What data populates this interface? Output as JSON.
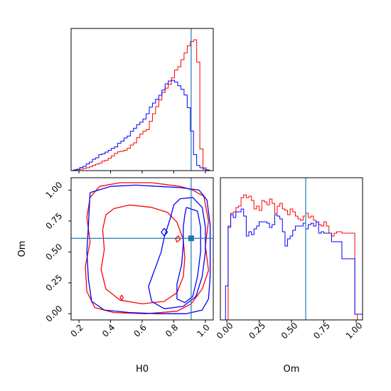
{
  "chart_data": [
    {
      "type": "histogram",
      "panel": "H0 marginal",
      "xlim": [
        0.15,
        1.05
      ],
      "truth": 0.91,
      "bins_x": [
        0.155,
        0.175,
        0.195,
        0.215,
        0.235,
        0.255,
        0.275,
        0.295,
        0.315,
        0.335,
        0.355,
        0.375,
        0.395,
        0.415,
        0.435,
        0.455,
        0.475,
        0.495,
        0.515,
        0.535,
        0.555,
        0.575,
        0.595,
        0.615,
        0.635,
        0.655,
        0.675,
        0.695,
        0.715,
        0.735,
        0.755,
        0.775,
        0.795,
        0.815,
        0.835,
        0.855,
        0.875,
        0.895,
        0.915,
        0.935,
        0.955,
        0.975,
        0.995,
        1.015,
        1.035
      ],
      "series": [
        {
          "color": "#ff0000",
          "values": [
            0,
            0.003,
            0.004,
            0.006,
            0.009,
            0.012,
            0.016,
            0.022,
            0.027,
            0.031,
            0.04,
            0.044,
            0.052,
            0.062,
            0.073,
            0.08,
            0.082,
            0.086,
            0.094,
            0.108,
            0.117,
            0.139,
            0.154,
            0.166,
            0.173,
            0.208,
            0.24,
            0.27,
            0.298,
            0.33,
            0.348,
            0.364,
            0.392,
            0.424,
            0.438,
            0.468,
            0.497,
            0.527,
            0.545,
            0.552,
            0.458,
            0.091,
            0.012,
            0,
            0
          ]
        },
        {
          "color": "#0000ff",
          "values": [
            0,
            0.003,
            0.006,
            0.013,
            0.018,
            0.028,
            0.036,
            0.048,
            0.054,
            0.067,
            0.071,
            0.078,
            0.086,
            0.094,
            0.1,
            0.115,
            0.124,
            0.138,
            0.146,
            0.166,
            0.179,
            0.194,
            0.204,
            0.218,
            0.24,
            0.268,
            0.285,
            0.301,
            0.318,
            0.34,
            0.366,
            0.378,
            0.381,
            0.374,
            0.358,
            0.343,
            0.319,
            0.266,
            0.167,
            0.068,
            0.022,
            0.012,
            0.006,
            0.003,
            0
          ]
        }
      ]
    },
    {
      "type": "contour",
      "panel": "H0 vs Om",
      "xlabel": "H0",
      "ylabel": "Om",
      "xlim": [
        0.15,
        1.05
      ],
      "ylim": [
        -0.05,
        1.1
      ],
      "truth": [
        0.91,
        0.61
      ],
      "x_ticks": [
        "0.2",
        "0.4",
        "0.6",
        "0.8",
        "1.0"
      ],
      "y_ticks": [
        "0.00",
        "0.25",
        "0.50",
        "0.75",
        "1.00"
      ],
      "series": [
        {
          "color": "#ff0000",
          "contours": [
            [
              [
                0.33,
                1.03
              ],
              [
                0.46,
                1.06
              ],
              [
                0.66,
                1.06
              ],
              [
                0.84,
                1.03
              ],
              [
                0.92,
                1.0
              ],
              [
                0.99,
                0.95
              ],
              [
                1.02,
                0.75
              ],
              [
                1.0,
                0.55
              ],
              [
                1.02,
                0.35
              ],
              [
                0.98,
                0.2
              ],
              [
                0.91,
                0.08
              ],
              [
                0.82,
                0.02
              ],
              [
                0.62,
                0.0
              ],
              [
                0.42,
                0.01
              ],
              [
                0.3,
                0.05
              ],
              [
                0.25,
                0.18
              ],
              [
                0.24,
                0.38
              ],
              [
                0.27,
                0.58
              ],
              [
                0.25,
                0.78
              ],
              [
                0.27,
                0.94
              ],
              [
                0.33,
                1.03
              ]
            ],
            [
              [
                0.42,
                0.85
              ],
              [
                0.52,
                0.88
              ],
              [
                0.66,
                0.86
              ],
              [
                0.76,
                0.82
              ],
              [
                0.82,
                0.74
              ],
              [
                0.86,
                0.6
              ],
              [
                0.87,
                0.45
              ],
              [
                0.86,
                0.3
              ],
              [
                0.82,
                0.17
              ],
              [
                0.74,
                0.1
              ],
              [
                0.6,
                0.08
              ],
              [
                0.46,
                0.11
              ],
              [
                0.37,
                0.2
              ],
              [
                0.34,
                0.36
              ],
              [
                0.36,
                0.52
              ],
              [
                0.35,
                0.68
              ],
              [
                0.37,
                0.8
              ],
              [
                0.42,
                0.85
              ]
            ],
            [
              [
                0.46,
                0.13
              ],
              [
                0.47,
                0.15
              ],
              [
                0.48,
                0.13
              ],
              [
                0.47,
                0.11
              ],
              [
                0.46,
                0.13
              ]
            ],
            [
              [
                0.81,
                0.61
              ],
              [
                0.83,
                0.63
              ],
              [
                0.84,
                0.6
              ],
              [
                0.82,
                0.58
              ],
              [
                0.81,
                0.61
              ]
            ]
          ]
        },
        {
          "color": "#0000ff",
          "contours": [
            [
              [
                0.27,
                0.98
              ],
              [
                0.4,
                1.03
              ],
              [
                0.56,
                1.04
              ],
              [
                0.7,
                1.03
              ],
              [
                0.84,
                1.02
              ],
              [
                0.96,
                1.0
              ],
              [
                1.01,
                0.92
              ],
              [
                1.03,
                0.72
              ],
              [
                1.03,
                0.5
              ],
              [
                1.03,
                0.3
              ],
              [
                1.02,
                0.12
              ],
              [
                0.98,
                0.03
              ],
              [
                0.88,
                0.0
              ],
              [
                0.7,
                0.0
              ],
              [
                0.52,
                0.01
              ],
              [
                0.36,
                0.03
              ],
              [
                0.28,
                0.1
              ],
              [
                0.26,
                0.28
              ],
              [
                0.25,
                0.5
              ],
              [
                0.26,
                0.72
              ],
              [
                0.27,
                0.98
              ]
            ],
            [
              [
                0.84,
                0.93
              ],
              [
                0.92,
                0.94
              ],
              [
                0.98,
                0.86
              ],
              [
                1.0,
                0.7
              ],
              [
                1.0,
                0.5
              ],
              [
                0.98,
                0.3
              ],
              [
                0.94,
                0.14
              ],
              [
                0.86,
                0.06
              ],
              [
                0.74,
                0.04
              ],
              [
                0.66,
                0.1
              ],
              [
                0.64,
                0.22
              ],
              [
                0.68,
                0.36
              ],
              [
                0.72,
                0.5
              ],
              [
                0.74,
                0.62
              ],
              [
                0.78,
                0.78
              ],
              [
                0.8,
                0.88
              ],
              [
                0.84,
                0.93
              ]
            ],
            [
              [
                0.88,
                0.86
              ],
              [
                0.95,
                0.83
              ],
              [
                0.97,
                0.7
              ],
              [
                0.97,
                0.5
              ],
              [
                0.95,
                0.3
              ],
              [
                0.92,
                0.14
              ],
              [
                0.87,
                0.09
              ],
              [
                0.82,
                0.12
              ],
              [
                0.82,
                0.24
              ],
              [
                0.85,
                0.4
              ],
              [
                0.86,
                0.56
              ],
              [
                0.86,
                0.7
              ],
              [
                0.87,
                0.8
              ],
              [
                0.88,
                0.86
              ]
            ],
            [
              [
                0.72,
                0.66
              ],
              [
                0.74,
                0.69
              ],
              [
                0.76,
                0.66
              ],
              [
                0.74,
                0.63
              ],
              [
                0.72,
                0.66
              ]
            ]
          ]
        }
      ]
    },
    {
      "type": "histogram",
      "panel": "Om marginal",
      "xlabel": "Om",
      "xlim": [
        -0.05,
        1.05
      ],
      "truth": 0.61,
      "x_ticks": [
        "0.00",
        "0.25",
        "0.50",
        "0.75",
        "1.00"
      ],
      "bins_x": [
        -0.04,
        -0.02,
        0.0,
        0.02,
        0.04,
        0.06,
        0.08,
        0.1,
        0.12,
        0.14,
        0.16,
        0.18,
        0.2,
        0.22,
        0.24,
        0.26,
        0.28,
        0.3,
        0.32,
        0.34,
        0.36,
        0.38,
        0.4,
        0.42,
        0.44,
        0.46,
        0.48,
        0.5,
        0.52,
        0.54,
        0.56,
        0.58,
        0.6,
        0.62,
        0.64,
        0.66,
        0.68,
        0.7,
        0.72,
        0.74,
        0.76,
        0.78,
        0.8,
        0.82,
        0.84,
        0.86,
        0.88,
        0.9,
        0.92,
        0.94,
        0.96,
        0.98,
        1.0,
        1.02,
        1.04
      ],
      "series": [
        {
          "color": "#ff0000",
          "values": [
            0,
            0,
            0,
            0.65,
            0.75,
            0.76,
            0.79,
            0.8,
            0.86,
            0.88,
            0.86,
            0.87,
            0.84,
            0.78,
            0.8,
            0.77,
            0.84,
            0.83,
            0.81,
            0.85,
            0.82,
            0.75,
            0.8,
            0.82,
            0.78,
            0.77,
            0.74,
            0.78,
            0.76,
            0.73,
            0.71,
            0.7,
            0.73,
            0.75,
            0.72,
            0.73,
            0.7,
            0.69,
            0.67,
            0.66,
            0.69,
            0.66,
            0.61,
            0.59,
            0.61,
            0.62,
            0.62,
            0.61,
            0.61,
            0.61,
            0.61,
            0.61,
            0.04,
            0,
            0
          ]
        },
        {
          "color": "#0000ff",
          "values": [
            0,
            0,
            0.24,
            0.66,
            0.74,
            0.72,
            0.76,
            0.76,
            0.78,
            0.73,
            0.59,
            0.62,
            0.6,
            0.64,
            0.66,
            0.69,
            0.69,
            0.69,
            0.68,
            0.65,
            0.67,
            0.74,
            0.73,
            0.71,
            0.62,
            0.52,
            0.57,
            0.59,
            0.63,
            0.66,
            0.66,
            0.66,
            0.68,
            0.64,
            0.67,
            0.68,
            0.66,
            0.69,
            0.61,
            0.62,
            0.61,
            0.61,
            0.61,
            0.55,
            0.55,
            0.55,
            0.55,
            0.43,
            0.43,
            0.43,
            0.43,
            0.43,
            0.04,
            0.04,
            0.04
          ]
        }
      ]
    }
  ]
}
